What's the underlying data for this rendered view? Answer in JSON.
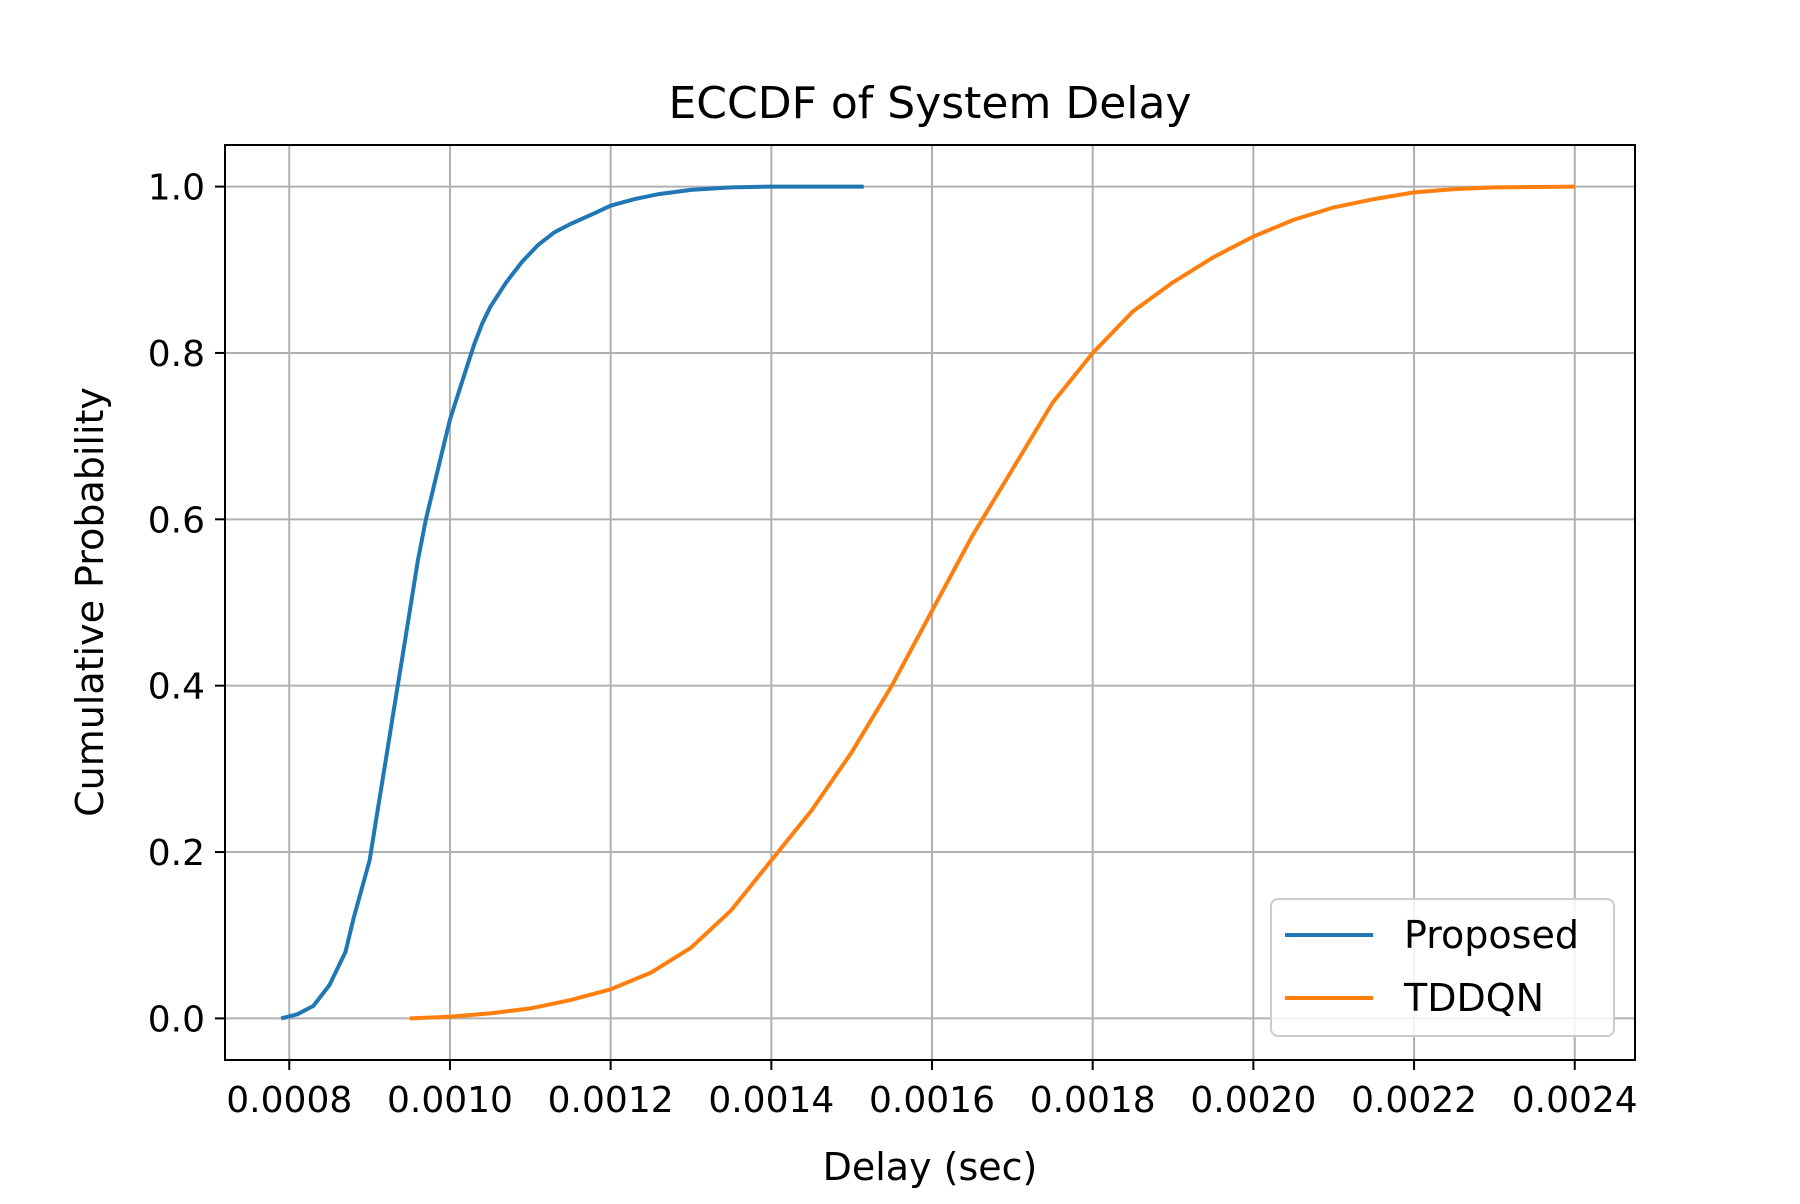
{
  "chart_data": {
    "type": "line",
    "title": "ECCDF of System Delay",
    "xlabel": "Delay (sec)",
    "ylabel": "Cumulative Probability",
    "xlim": [
      0.00072,
      0.002475
    ],
    "ylim": [
      -0.05,
      1.05
    ],
    "x_ticks": [
      0.0008,
      0.001,
      0.0012,
      0.0014,
      0.0016,
      0.0018,
      0.002,
      0.0022,
      0.0024
    ],
    "x_tick_labels": [
      "0.0008",
      "0.0010",
      "0.0012",
      "0.0014",
      "0.0016",
      "0.0018",
      "0.0020",
      "0.0022",
      "0.0024"
    ],
    "y_ticks": [
      0.0,
      0.2,
      0.4,
      0.6,
      0.8,
      1.0
    ],
    "y_tick_labels": [
      "0.0",
      "0.2",
      "0.4",
      "0.6",
      "0.8",
      "1.0"
    ],
    "grid": true,
    "legend_position": "lower-right",
    "series": [
      {
        "name": "Proposed",
        "color": "#1f77b4",
        "x": [
          0.00079,
          0.00081,
          0.00083,
          0.00085,
          0.00087,
          0.00088,
          0.0009,
          0.00091,
          0.00092,
          0.00093,
          0.00094,
          0.00095,
          0.00096,
          0.00097,
          0.00098,
          0.00099,
          0.001,
          0.00101,
          0.00102,
          0.00103,
          0.00104,
          0.00105,
          0.00107,
          0.00109,
          0.00111,
          0.00113,
          0.00115,
          0.00118,
          0.0012,
          0.00123,
          0.00126,
          0.0013,
          0.00135,
          0.0014,
          0.00145,
          0.001515
        ],
        "y": [
          0.0,
          0.005,
          0.015,
          0.04,
          0.08,
          0.12,
          0.19,
          0.25,
          0.31,
          0.37,
          0.43,
          0.49,
          0.55,
          0.6,
          0.64,
          0.68,
          0.72,
          0.75,
          0.78,
          0.81,
          0.835,
          0.855,
          0.885,
          0.91,
          0.93,
          0.945,
          0.955,
          0.968,
          0.977,
          0.985,
          0.991,
          0.996,
          0.999,
          1.0,
          1.0,
          1.0
        ]
      },
      {
        "name": "TDDQN",
        "color": "#ff7f0e",
        "x": [
          0.00095,
          0.001,
          0.00105,
          0.0011,
          0.00115,
          0.0012,
          0.00125,
          0.0013,
          0.00135,
          0.0014,
          0.00145,
          0.0015,
          0.00155,
          0.0016,
          0.00165,
          0.0017,
          0.00175,
          0.0018,
          0.00185,
          0.0019,
          0.00195,
          0.002,
          0.00205,
          0.0021,
          0.00215,
          0.0022,
          0.00225,
          0.0023,
          0.0024
        ],
        "y": [
          0.0,
          0.002,
          0.006,
          0.012,
          0.022,
          0.035,
          0.055,
          0.085,
          0.13,
          0.19,
          0.25,
          0.32,
          0.4,
          0.49,
          0.58,
          0.66,
          0.74,
          0.8,
          0.85,
          0.885,
          0.915,
          0.94,
          0.96,
          0.975,
          0.985,
          0.993,
          0.997,
          0.999,
          1.0
        ]
      }
    ]
  }
}
